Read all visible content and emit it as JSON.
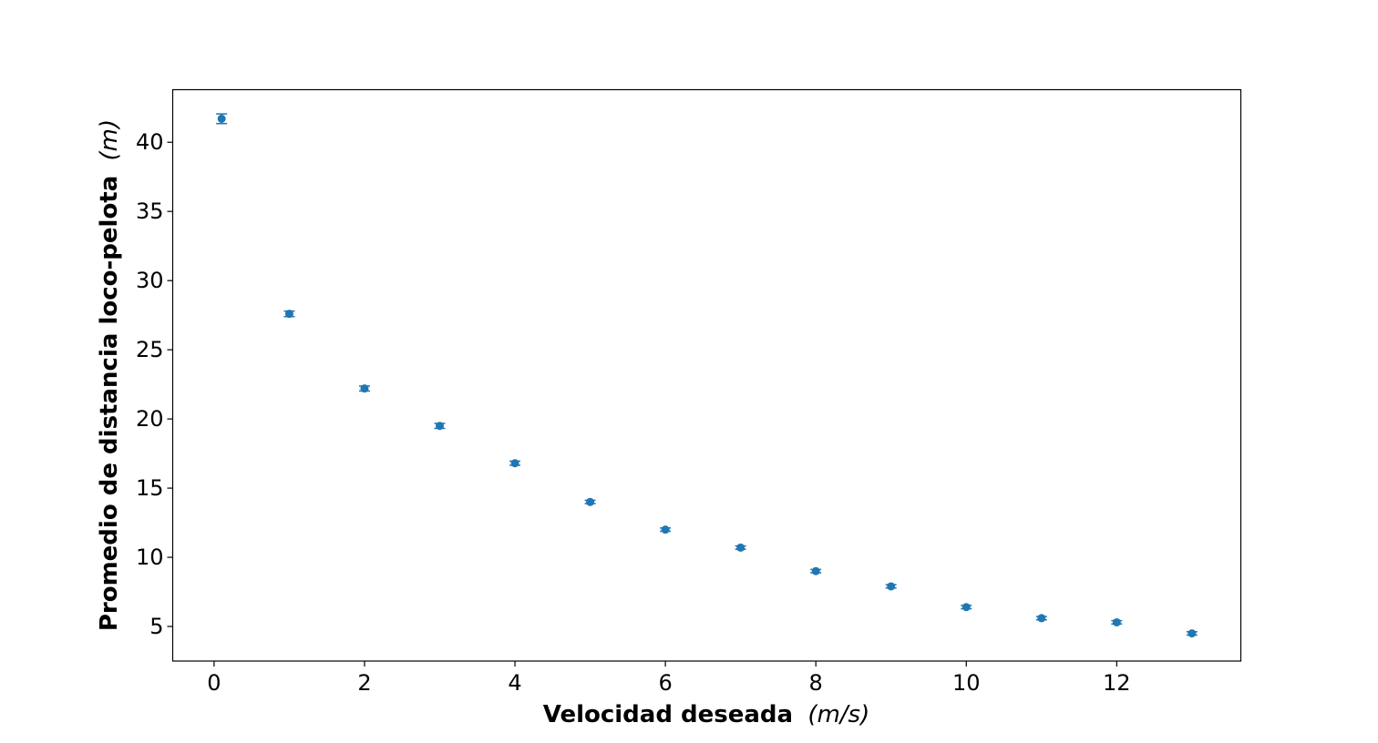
{
  "chart_data": {
    "type": "scatter",
    "title": "",
    "xlabel": {
      "bold": "Velocidad deseada",
      "unit": "(m/s)"
    },
    "ylabel": {
      "bold": "Promedio de distancia loco-pelota",
      "unit": "(m)"
    },
    "xlim": [
      -0.55,
      13.65
    ],
    "ylim": [
      2.5,
      43.8
    ],
    "xticks": [
      0,
      2,
      4,
      6,
      8,
      10,
      12
    ],
    "yticks": [
      5,
      10,
      15,
      20,
      25,
      30,
      35,
      40
    ],
    "grid": false,
    "legend": "none",
    "marker_color": "#1f77b4",
    "series": [
      {
        "x": [
          0.1,
          1,
          2,
          3,
          4,
          5,
          6,
          7,
          8,
          9,
          10,
          11,
          12,
          13
        ],
        "y": [
          41.7,
          27.6,
          22.2,
          19.5,
          16.8,
          14.0,
          12.0,
          10.7,
          9.0,
          7.9,
          6.4,
          5.6,
          5.3,
          4.5
        ],
        "yerr": [
          0.35,
          0.2,
          0.18,
          0.18,
          0.15,
          0.12,
          0.12,
          0.12,
          0.12,
          0.12,
          0.12,
          0.12,
          0.12,
          0.12
        ]
      }
    ]
  }
}
